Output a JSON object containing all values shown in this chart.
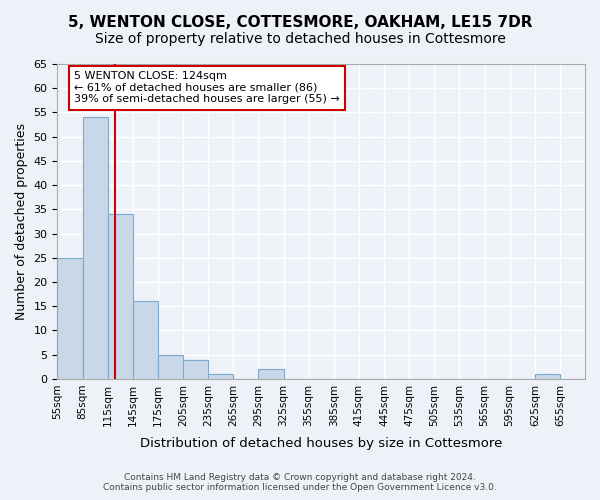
{
  "title_line1": "5, WENTON CLOSE, COTTESMORE, OAKHAM, LE15 7DR",
  "title_line2": "Size of property relative to detached houses in Cottesmore",
  "xlabel": "Distribution of detached houses by size in Cottesmore",
  "ylabel": "Number of detached properties",
  "footer_line1": "Contains HM Land Registry data © Crown copyright and database right 2024.",
  "footer_line2": "Contains public sector information licensed under the Open Government Licence v3.0.",
  "bin_labels": [
    "55sqm",
    "85sqm",
    "115sqm",
    "145sqm",
    "175sqm",
    "205sqm",
    "235sqm",
    "265sqm",
    "295sqm",
    "325sqm",
    "355sqm",
    "385sqm",
    "415sqm",
    "445sqm",
    "475sqm",
    "505sqm",
    "535sqm",
    "565sqm",
    "595sqm",
    "625sqm",
    "655sqm"
  ],
  "bar_values": [
    25,
    54,
    34,
    16,
    5,
    4,
    1,
    0,
    2,
    0,
    0,
    0,
    0,
    0,
    0,
    0,
    0,
    0,
    0,
    1,
    0
  ],
  "bar_color": "#c8d8e8",
  "bar_edge_color": "#7aaac8",
  "vline_x": 124,
  "vline_color": "#cc0000",
  "annotation_text": "5 WENTON CLOSE: 124sqm\n← 61% of detached houses are smaller (86)\n39% of semi-detached houses are larger (55) →",
  "annotation_box_color": "#ffffff",
  "annotation_box_edge": "#cc0000",
  "ylim": [
    0,
    65
  ],
  "yticks": [
    0,
    5,
    10,
    15,
    20,
    25,
    30,
    35,
    40,
    45,
    50,
    55,
    60,
    65
  ],
  "bin_edges": [
    55,
    85,
    115,
    145,
    175,
    205,
    235,
    265,
    295,
    325,
    355,
    385,
    415,
    445,
    475,
    505,
    535,
    565,
    595,
    625,
    655
  ],
  "bin_width": 30,
  "background_color": "#eef2f8",
  "grid_color": "#ffffff",
  "title_fontsize": 11,
  "subtitle_fontsize": 10
}
